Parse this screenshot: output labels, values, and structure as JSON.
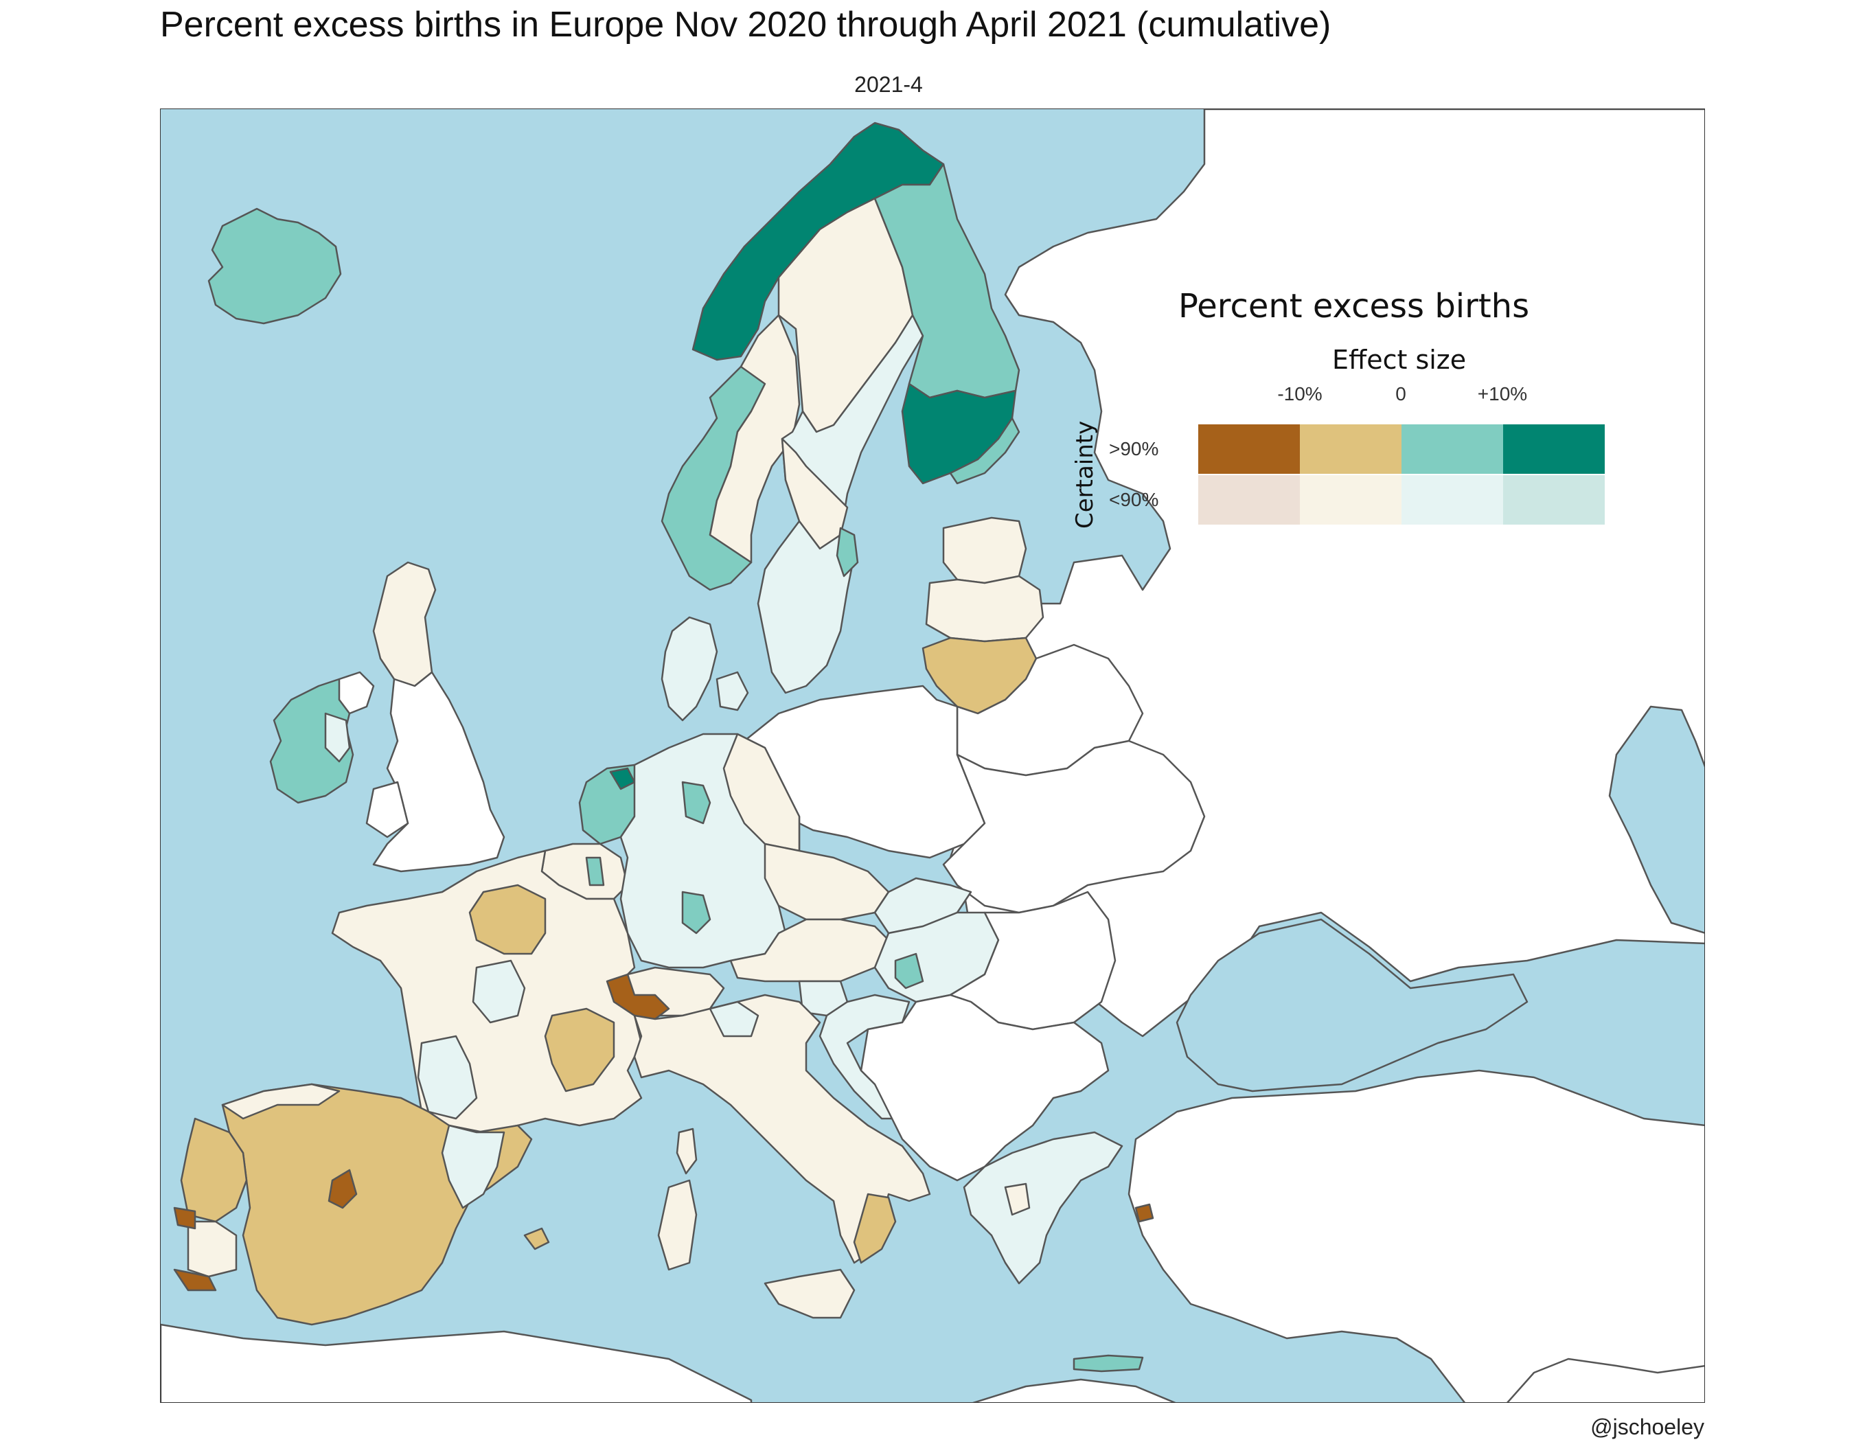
{
  "title": "Percent excess births in Europe Nov 2020 through April 2021 (cumulative)",
  "facet_label": "2021-4",
  "credit": "@jschoeley",
  "colors": {
    "sea": "#add8e6",
    "land_nodata": "#ffffff",
    "border": "#555555",
    "high_neg10": "#a6611a",
    "high_neg": "#dfc27d",
    "high_pos": "#80cdc1",
    "high_pos10": "#018571",
    "low_neg10": "#ede0d6",
    "low_neg": "#f8f3e6",
    "low_pos": "#e6f4f3",
    "low_pos10": "#cce7e3"
  },
  "legend": {
    "title": "Percent excess births",
    "effect_label": "Effect size",
    "effect_ticks": [
      "-10%",
      "0",
      "+10%"
    ],
    "certainty_label": "Certainty",
    "certainty_levels": [
      ">90%",
      "<90%"
    ]
  },
  "regions": [
    {
      "name": "Iceland",
      "class": "high_pos"
    },
    {
      "name": "Northern Norway",
      "class": "high_pos10"
    },
    {
      "name": "Western Norway",
      "class": "high_pos"
    },
    {
      "name": "Southern Norway",
      "class": "high_pos"
    },
    {
      "name": "Inner Norway",
      "class": "low_neg"
    },
    {
      "name": "Northern Sweden",
      "class": "low_neg"
    },
    {
      "name": "Central Sweden",
      "class": "low_neg"
    },
    {
      "name": "Southern Sweden",
      "class": "low_pos"
    },
    {
      "name": "Northern Finland",
      "class": "high_pos"
    },
    {
      "name": "Central Finland",
      "class": "high_pos10"
    },
    {
      "name": "Estonia",
      "class": "low_neg"
    },
    {
      "name": "Latvia",
      "class": "low_neg"
    },
    {
      "name": "Lithuania",
      "class": "high_neg"
    },
    {
      "name": "Denmark",
      "class": "low_pos"
    },
    {
      "name": "Ireland",
      "class": "high_pos"
    },
    {
      "name": "Scotland",
      "class": "low_neg"
    },
    {
      "name": "Netherlands",
      "class": "high_pos"
    },
    {
      "name": "Belgium",
      "class": "low_neg"
    },
    {
      "name": "Germany",
      "class": "low_pos"
    },
    {
      "name": "Czechia",
      "class": "low_neg"
    },
    {
      "name": "Slovakia",
      "class": "low_pos"
    },
    {
      "name": "Hungary",
      "class": "low_pos"
    },
    {
      "name": "Austria",
      "class": "low_neg"
    },
    {
      "name": "Slovenia",
      "class": "low_pos"
    },
    {
      "name": "Croatia",
      "class": "low_pos"
    },
    {
      "name": "Switzerland",
      "class": "low_neg"
    },
    {
      "name": "France",
      "class": "low_neg"
    },
    {
      "name": "Italy",
      "class": "low_neg"
    },
    {
      "name": "Spain",
      "class": "high_neg"
    },
    {
      "name": "Portugal",
      "class": "high_neg"
    },
    {
      "name": "Greece",
      "class": "low_pos"
    },
    {
      "name": "Crete",
      "class": "high_pos"
    }
  ]
}
